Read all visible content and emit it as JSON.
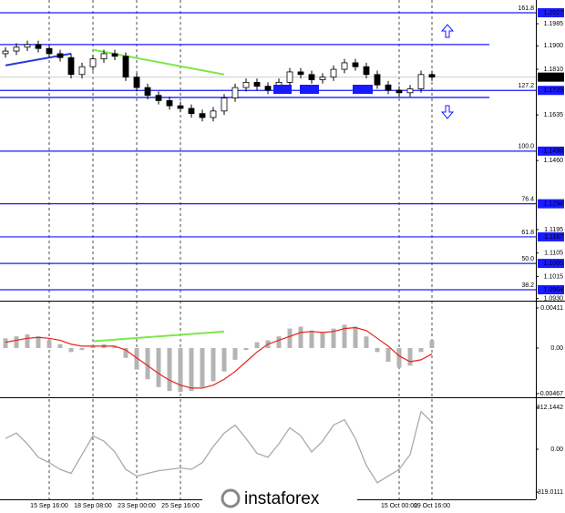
{
  "chart_data": [
    {
      "type": "candlestick",
      "categories": [
        null,
        null,
        null,
        null,
        "15 Sep 16:00",
        null,
        null,
        null,
        "18 Sep 08:00",
        null,
        null,
        null,
        "23 Sep 00:00",
        null,
        null,
        null,
        "25 Sep 16:00",
        null,
        null,
        null,
        null,
        null,
        null,
        null,
        null,
        null,
        null,
        null,
        null,
        null,
        null,
        null,
        null,
        null,
        null,
        null,
        "15 Oct 00:00",
        null,
        null,
        "19 Oct 16:00"
      ],
      "open": [
        1.187,
        1.188,
        1.1895,
        1.1905,
        1.189,
        1.187,
        1.1855,
        1.179,
        1.182,
        1.185,
        1.187,
        1.186,
        1.178,
        1.174,
        1.171,
        1.169,
        1.167,
        1.166,
        1.164,
        1.1625,
        1.165,
        1.17,
        1.174,
        1.176,
        1.1745,
        1.173,
        1.176,
        1.18,
        1.179,
        1.177,
        1.178,
        1.181,
        1.1835,
        1.182,
        1.179,
        1.175,
        1.173,
        1.172,
        1.1735,
        1.179
      ],
      "high": [
        1.1895,
        1.191,
        1.192,
        1.192,
        1.1905,
        1.1885,
        1.187,
        1.1835,
        1.1865,
        1.1885,
        1.1885,
        1.1875,
        1.1795,
        1.1755,
        1.1725,
        1.1705,
        1.1685,
        1.1675,
        1.1655,
        1.1665,
        1.1715,
        1.1755,
        1.1775,
        1.1775,
        1.176,
        1.1775,
        1.1815,
        1.1815,
        1.1805,
        1.1795,
        1.1825,
        1.185,
        1.185,
        1.1835,
        1.1805,
        1.1765,
        1.1745,
        1.175,
        1.1805,
        1.1805
      ],
      "low": [
        1.1855,
        1.1865,
        1.188,
        1.1875,
        1.1855,
        1.184,
        1.1775,
        1.1775,
        1.1805,
        1.1835,
        1.1845,
        1.1765,
        1.1725,
        1.1695,
        1.1675,
        1.1655,
        1.1645,
        1.1625,
        1.161,
        1.161,
        1.1635,
        1.1685,
        1.1725,
        1.173,
        1.1715,
        1.1715,
        1.1745,
        1.1775,
        1.1755,
        1.1755,
        1.1765,
        1.1795,
        1.1805,
        1.1775,
        1.1735,
        1.1715,
        1.1705,
        1.1705,
        1.172,
        1.1765
      ],
      "close": [
        1.188,
        1.1895,
        1.1905,
        1.189,
        1.187,
        1.1855,
        1.179,
        1.182,
        1.185,
        1.187,
        1.186,
        1.178,
        1.174,
        1.171,
        1.169,
        1.167,
        1.166,
        1.164,
        1.1625,
        1.165,
        1.17,
        1.174,
        1.176,
        1.1745,
        1.173,
        1.176,
        1.18,
        1.179,
        1.177,
        1.178,
        1.181,
        1.1835,
        1.182,
        1.179,
        1.175,
        1.173,
        1.172,
        1.1735,
        1.179,
        1.178
      ],
      "ylim": [
        1.0929,
        1.2076
      ],
      "yticks": [
        1.1985,
        {
          "value": 1.19,
          "label": "1.1900"
        },
        {
          "value": 1.181,
          "label": "1.1810"
        },
        1.1635,
        {
          "value": 1.146,
          "label": "1.1460"
        },
        1.1195,
        1.1105,
        1.1015,
        {
          "value": 1.093,
          "label": "1.0930"
        }
      ],
      "levels": [
        {
          "ratio": 161.8,
          "value": 1.2027
        },
        {
          "ratio": 127.2,
          "value": 1.1729
        },
        {
          "ratio": {
            "value": 100,
            "label": "100.0"
          },
          "value": 1.1496
        },
        {
          "ratio": 76.4,
          "value": 1.1294
        },
        {
          "ratio": 61.8,
          "value": 1.1167
        },
        {
          "ratio": {
            "value": 50,
            "label": "50.0"
          },
          "value": 1.1065
        },
        {
          "ratio": 38.2,
          "value": 1.0964
        }
      ],
      "level_color": "#1a1aff",
      "channel_lines": [
        1.1905,
        1.1702
      ],
      "current_price": {
        "value": 1.178,
        "label": "1.1780"
      },
      "trendlines": [
        {
          "color": "#2a3bd6",
          "start": [
            0,
            1.1825
          ],
          "end": [
            6,
            1.187
          ]
        },
        {
          "color": "#7de84a",
          "start": [
            8,
            1.1885
          ],
          "end": [
            20,
            1.179
          ]
        }
      ],
      "watermark": "instaforex"
    },
    {
      "type": "macd",
      "histogram": {
        "color": "#b4b4b4",
        "values": [
          0.001,
          0.0012,
          0.0014,
          0.0012,
          0.0008,
          0.0004,
          -0.0004,
          -0.0002,
          0.0002,
          0.0004,
          0.0002,
          -0.001,
          -0.0022,
          -0.0032,
          -0.004,
          -0.0044,
          -0.0045,
          -0.0044,
          -0.004,
          -0.0034,
          -0.0024,
          -0.0012,
          -0.0002,
          0.0006,
          0.0008,
          0.0012,
          0.002,
          0.0022,
          0.0018,
          0.0016,
          0.002,
          0.0024,
          0.0022,
          0.0012,
          -0.0004,
          -0.0014,
          -0.002,
          -0.0018,
          -0.0004,
          0.0008
        ]
      },
      "signal": {
        "color": "#e8231d",
        "values": [
          0.0006,
          0.0008,
          0.001,
          0.0011,
          0.001,
          0.0008,
          0.0004,
          0.0002,
          0.0002,
          0.0002,
          0.0002,
          -0.0002,
          -0.001,
          -0.0018,
          -0.0026,
          -0.0033,
          -0.0038,
          -0.0041,
          -0.0041,
          -0.0038,
          -0.0032,
          -0.0024,
          -0.0014,
          -0.0004,
          0.0004,
          0.0008,
          0.0012,
          0.0016,
          0.0017,
          0.0016,
          0.0017,
          0.002,
          0.0021,
          0.0018,
          0.001,
          0.0002,
          -0.0008,
          -0.0014,
          -0.0012,
          -0.0006
        ]
      },
      "trendline": {
        "color": "#7de84a",
        "start": [
          8,
          0.0007
        ],
        "end": [
          20,
          0.0017
        ]
      },
      "ylim": [
        -0.00495,
        0.00458
      ],
      "yticks": [
        0.00411,
        {
          "value": 0,
          "label": "0.00"
        },
        -0.00467
      ]
    },
    {
      "type": "cci",
      "line": {
        "color": "#aaaaaa",
        "values": [
          80,
          120,
          40,
          -60,
          -100,
          -150,
          -180,
          -40,
          100,
          60,
          -20,
          -150,
          -200,
          -180,
          -160,
          -150,
          -140,
          -150,
          -100,
          20,
          120,
          180,
          80,
          -30,
          -60,
          40,
          160,
          100,
          -20,
          60,
          180,
          220,
          80,
          -120,
          -250,
          -200,
          -150,
          -40,
          280,
          200
        ]
      },
      "ylim": [
        -373,
        373
      ],
      "yticks": [
        312.1442,
        {
          "value": 0,
          "label": "0.00"
        },
        -319.0111
      ]
    }
  ]
}
